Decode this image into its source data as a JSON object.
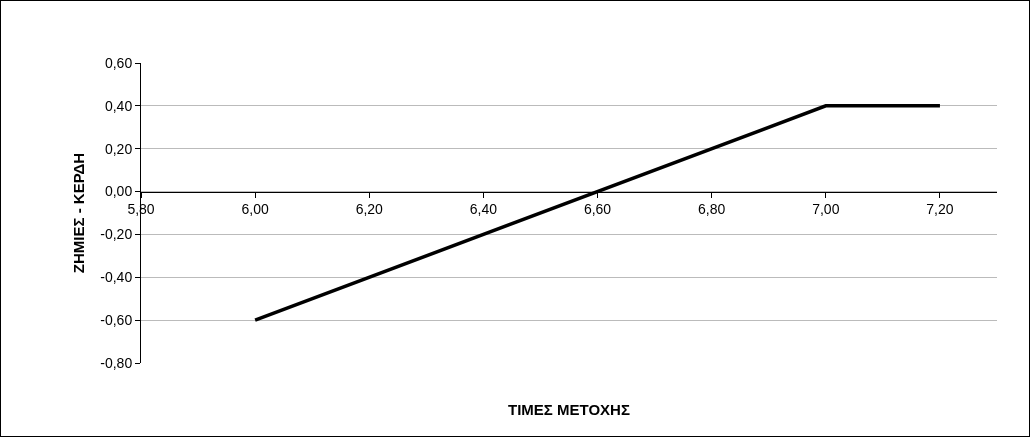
{
  "chart_data": {
    "type": "line",
    "xlabel": "ΤΙΜΕΣ ΜΕΤΟΧΗΣ",
    "ylabel": "ΖΗΜΙΕΣ - ΚΕΡΔΗ",
    "x": [
      6.0,
      7.0,
      7.2
    ],
    "series": [
      {
        "color": "#000000",
        "values": [
          -0.6,
          0.4,
          0.4
        ]
      }
    ],
    "xlim": [
      5.8,
      7.3
    ],
    "ylim": [
      -0.8,
      0.6
    ],
    "xticks": [
      {
        "value": 5.8,
        "label": "5,80"
      },
      {
        "value": 6.0,
        "label": "6,00"
      },
      {
        "value": 6.2,
        "label": "6,20"
      },
      {
        "value": 6.4,
        "label": "6,40"
      },
      {
        "value": 6.6,
        "label": "6,60"
      },
      {
        "value": 6.8,
        "label": "6,80"
      },
      {
        "value": 7.0,
        "label": "7,00"
      },
      {
        "value": 7.2,
        "label": "7,20"
      }
    ],
    "yticks": [
      {
        "value": -0.8,
        "label": "-0,80"
      },
      {
        "value": -0.6,
        "label": "-0,60"
      },
      {
        "value": -0.4,
        "label": "-0,40"
      },
      {
        "value": -0.2,
        "label": "-0,20"
      },
      {
        "value": 0,
        "label": "0,00"
      },
      {
        "value": 0.2,
        "label": "0,20"
      },
      {
        "value": 0.4,
        "label": "0,40"
      },
      {
        "value": 0.6,
        "label": "0,60"
      }
    ],
    "grid": "y",
    "marker": "none",
    "line_style": "solid"
  }
}
